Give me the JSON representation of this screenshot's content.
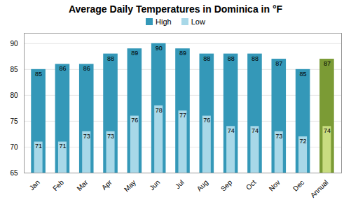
{
  "chart_data": {
    "type": "bar",
    "title": "Average Daily Temperatures in Dominica in °F",
    "categories": [
      "Jan",
      "Feb",
      "Mar",
      "Apr",
      "May",
      "Jun",
      "Jul",
      "Aug",
      "Sep",
      "Oct",
      "Nov",
      "Dec",
      "Annual"
    ],
    "series": [
      {
        "name": "High",
        "color": "#3498B8",
        "colors": [
          "#3498B8",
          "#3498B8",
          "#3498B8",
          "#3498B8",
          "#3498B8",
          "#3498B8",
          "#3498B8",
          "#3498B8",
          "#3498B8",
          "#3498B8",
          "#3498B8",
          "#3498B8",
          "#7B9B35"
        ],
        "values": [
          85,
          86,
          86,
          88,
          89,
          90,
          89,
          88,
          88,
          88,
          87,
          85,
          87
        ]
      },
      {
        "name": "Low",
        "color": "#A8D8E8",
        "colors": [
          "#A8D8E8",
          "#A8D8E8",
          "#A8D8E8",
          "#A8D8E8",
          "#A8D8E8",
          "#A8D8E8",
          "#A8D8E8",
          "#A8D8E8",
          "#A8D8E8",
          "#A8D8E8",
          "#A8D8E8",
          "#A8D8E8",
          "#C8DC80"
        ],
        "values": [
          71,
          71,
          73,
          73,
          76,
          78,
          77,
          76,
          74,
          74,
          73,
          72,
          74
        ]
      }
    ],
    "ylim": [
      65,
      92
    ],
    "yticks": [
      65,
      70,
      75,
      80,
      85,
      90
    ],
    "grid": true,
    "legend": "top",
    "data_labels": true
  }
}
